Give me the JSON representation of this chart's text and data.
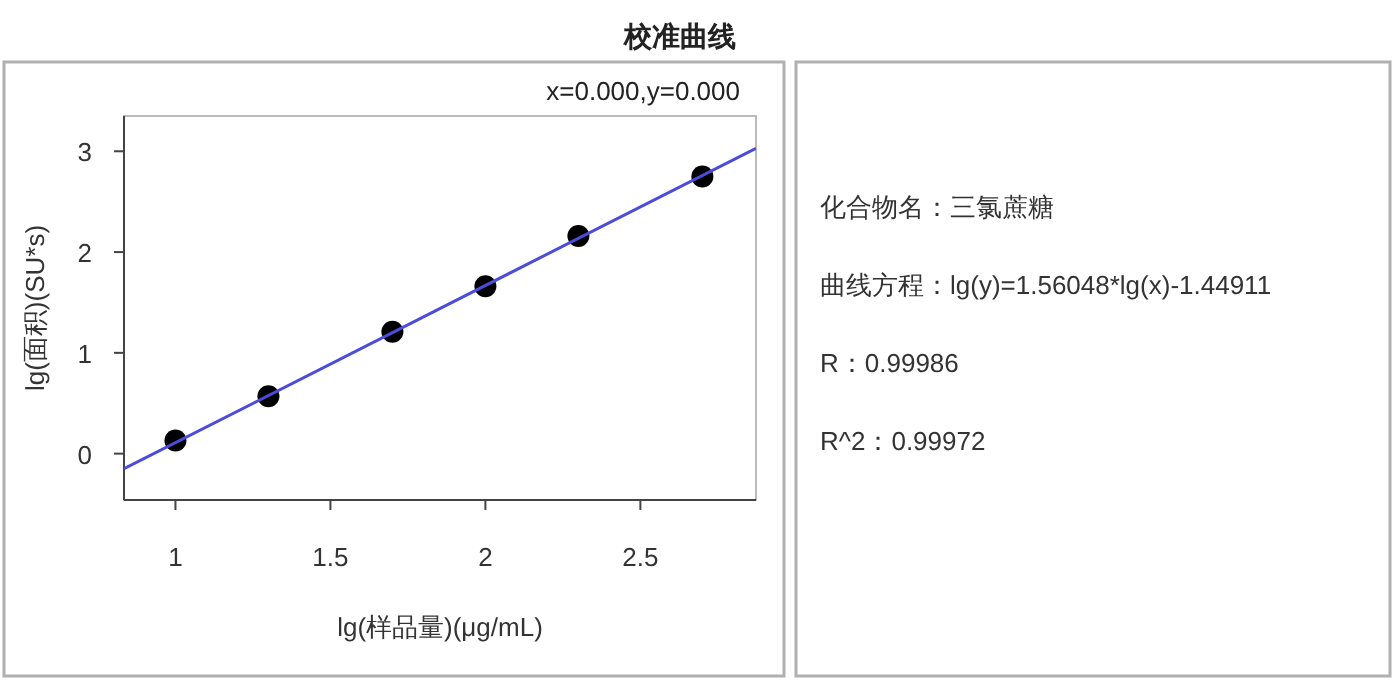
{
  "chart_data": [
    {
      "type": "scatter",
      "title": "校准曲线",
      "annotations": [
        "x=0.000,y=0.000"
      ],
      "xlabel": "lg(样品量)(μg/mL)",
      "ylabel": "lg(面积)(SU*s)",
      "xlim": [
        0.834,
        2.873
      ],
      "ylim": [
        -0.46,
        3.35
      ],
      "xticks": [
        1,
        1.5,
        2,
        2.5
      ],
      "yticks": [
        0,
        1,
        2,
        3
      ],
      "series": [
        {
          "type": "scatter",
          "marker": "circle",
          "color": "#000000",
          "x": [
            1,
            1.3,
            1.7,
            2,
            2.3,
            2.7
          ],
          "values": [
            0.13,
            0.57,
            1.21,
            1.66,
            2.16,
            2.75
          ]
        },
        {
          "type": "line",
          "line_style": "solid",
          "color": "#4b4bdc",
          "x": [
            0.834,
            2.873
          ],
          "values": [
            -0.15,
            3.03
          ]
        }
      ]
    },
    {
      "type": "other",
      "annotations": [
        "化合物名：三氯蔗糖",
        "曲线方程：lg(y)=1.56048*lg(x)-1.44911",
        "R：0.99986",
        "R^2：0.99972"
      ]
    }
  ]
}
